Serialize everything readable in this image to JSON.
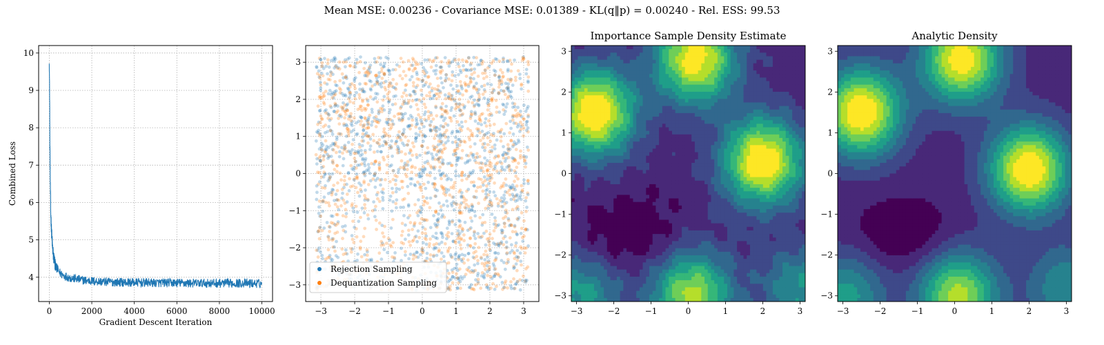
{
  "figure": {
    "suptitle": "Mean MSE: 0.00236 - Covariance MSE: 0.01389 - KL(q‖p) = 0.00240 - Rel. ESS: 99.53"
  },
  "colors": {
    "blue": "#1f77b4",
    "orange": "#ff7f0e",
    "viridis": [
      "#440154",
      "#482878",
      "#3e4989",
      "#31688e",
      "#26828e",
      "#1f9e89",
      "#35b779",
      "#6ece58",
      "#b5de2b",
      "#fde725"
    ]
  },
  "chart_data": [
    {
      "type": "line",
      "title": "",
      "xlabel": "Gradient Descent Iteration",
      "ylabel": "Combined Loss",
      "xlim": [
        -500,
        10500
      ],
      "ylim": [
        3.35,
        10.2
      ],
      "xticks": [
        0,
        2000,
        4000,
        6000,
        8000,
        10000
      ],
      "yticks": [
        4,
        5,
        6,
        7,
        8,
        9,
        10
      ],
      "grid": true,
      "series": [
        {
          "color": "#1f77b4",
          "x": [
            0,
            10,
            20,
            30,
            40,
            50,
            70,
            100,
            130,
            160,
            200,
            250,
            300,
            400,
            500,
            600,
            800,
            1000,
            1200,
            1500,
            2000,
            2500,
            3000,
            4000,
            5000,
            6000,
            7000,
            8000,
            9000,
            10000
          ],
          "y": [
            9.9,
            9.2,
            8.6,
            7.6,
            7.0,
            6.4,
            5.7,
            5.3,
            5.0,
            4.75,
            4.55,
            4.4,
            4.3,
            4.2,
            4.12,
            4.07,
            4.02,
            3.98,
            3.96,
            3.93,
            3.9,
            3.88,
            3.87,
            3.86,
            3.85,
            3.85,
            3.84,
            3.84,
            3.84,
            3.83
          ],
          "noise_band": 0.12
        }
      ]
    },
    {
      "type": "scatter",
      "title": "",
      "xlim": [
        -3.45,
        3.45
      ],
      "ylim": [
        -3.45,
        3.45
      ],
      "xticks": [
        -3,
        -2,
        -1,
        0,
        1,
        2,
        3
      ],
      "yticks": [
        -3,
        -2,
        -1,
        0,
        1,
        2,
        3
      ],
      "grid": true,
      "legend_position": "lower-left",
      "series": [
        {
          "name": "Rejection Sampling",
          "color": "#1f77b4"
        },
        {
          "name": "Dequantization Sampling",
          "color": "#ff7f0e"
        }
      ]
    },
    {
      "type": "heatmap",
      "title": "Importance Sample Density Estimate",
      "xlim": [
        -3.14,
        3.14
      ],
      "ylim": [
        -3.14,
        3.14
      ],
      "xticks": [
        -3,
        -2,
        -1,
        0,
        1,
        2,
        3
      ],
      "yticks": [
        -3,
        -2,
        -1,
        0,
        1,
        2,
        3
      ],
      "colormap": "viridis",
      "levels": 8,
      "modes": [
        {
          "x": -2.5,
          "y": 1.5,
          "amp": 1.0
        },
        {
          "x": 0.2,
          "y": 2.8,
          "amp": 0.95
        },
        {
          "x": 2.0,
          "y": 0.3,
          "amp": 1.0
        },
        {
          "x": 0.1,
          "y": -3.0,
          "amp": 0.8
        },
        {
          "x": -2.9,
          "y": -3.0,
          "amp": 0.45
        },
        {
          "x": 3.0,
          "y": -2.8,
          "amp": 0.4
        }
      ],
      "minima": [
        {
          "x": -1.6,
          "y": -1.5
        }
      ]
    },
    {
      "type": "heatmap",
      "title": "Analytic Density",
      "xlim": [
        -3.14,
        3.14
      ],
      "ylim": [
        -3.14,
        3.14
      ],
      "xticks": [
        -3,
        -2,
        -1,
        0,
        1,
        2,
        3
      ],
      "yticks": [
        -3,
        -2,
        -1,
        0,
        1,
        2,
        3
      ],
      "colormap": "viridis",
      "levels": 8,
      "modes": [
        {
          "x": -2.5,
          "y": 1.5,
          "amp": 1.0
        },
        {
          "x": 0.2,
          "y": 2.8,
          "amp": 0.95
        },
        {
          "x": 2.0,
          "y": 0.1,
          "amp": 1.0
        },
        {
          "x": 0.1,
          "y": -3.0,
          "amp": 0.8
        },
        {
          "x": -2.9,
          "y": -3.0,
          "amp": 0.45
        },
        {
          "x": 3.0,
          "y": -2.8,
          "amp": 0.4
        }
      ],
      "minima": [
        {
          "x": -1.4,
          "y": -1.5
        }
      ]
    }
  ]
}
